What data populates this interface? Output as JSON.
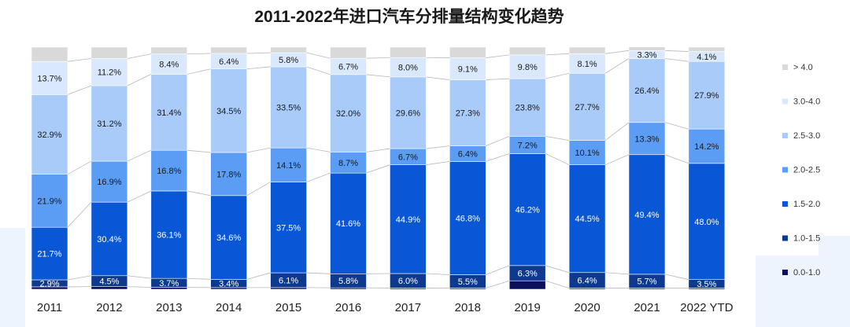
{
  "chart_data": {
    "type": "bar",
    "stacked": true,
    "normalized": true,
    "title": "2011-2022年进口汽车分排量结构变化趋势",
    "xlabel": "",
    "ylabel": "",
    "ylim": [
      0,
      100
    ],
    "grid": false,
    "legend_position": "right",
    "categories": [
      "2011",
      "2012",
      "2013",
      "2014",
      "2015",
      "2016",
      "2017",
      "2018",
      "2019",
      "2020",
      "2021",
      "2022 YTD"
    ],
    "series": [
      {
        "name": "0.0-1.0",
        "color": "#0a0f5c",
        "values": [
          1.0,
          1.1,
          0.8,
          0.7,
          0.7,
          0.6,
          0.5,
          0.5,
          3.5,
          0.5,
          0.5,
          0.5
        ]
      },
      {
        "name": "1.0-1.5",
        "color": "#0d3a8f",
        "labels": [
          "2.9%",
          "4.5%",
          "3.7%",
          "3.4%",
          "6.1%",
          "5.8%",
          "6.0%",
          "5.5%",
          "6.3%",
          "6.4%",
          "5.7%",
          "3.5%"
        ],
        "values": [
          2.9,
          4.5,
          3.7,
          3.4,
          6.1,
          5.8,
          6.0,
          5.5,
          6.3,
          6.4,
          5.7,
          3.5
        ]
      },
      {
        "name": "1.5-2.0",
        "color": "#0a57d6",
        "labels": [
          "21.7%",
          "30.4%",
          "36.1%",
          "34.6%",
          "37.5%",
          "41.6%",
          "44.9%",
          "46.8%",
          "46.2%",
          "44.5%",
          "49.4%",
          "48.0%"
        ],
        "values": [
          21.7,
          30.4,
          36.1,
          34.6,
          37.5,
          41.6,
          44.9,
          46.8,
          46.2,
          44.5,
          49.4,
          48.0
        ]
      },
      {
        "name": "2.0-2.5",
        "color": "#5b9cf5",
        "labels": [
          "21.9%",
          "16.9%",
          "16.8%",
          "17.8%",
          "14.1%",
          "8.7%",
          "6.7%",
          "6.4%",
          "7.2%",
          "10.1%",
          "13.3%",
          "14.2%"
        ],
        "values": [
          21.9,
          16.9,
          16.8,
          17.8,
          14.1,
          8.7,
          6.7,
          6.4,
          7.2,
          10.1,
          13.3,
          14.2
        ]
      },
      {
        "name": "2.5-3.0",
        "color": "#a9cbf9",
        "labels": [
          "32.9%",
          "31.2%",
          "31.4%",
          "34.5%",
          "33.5%",
          "32.0%",
          "29.6%",
          "27.3%",
          "23.8%",
          "27.7%",
          "26.4%",
          "27.9%"
        ],
        "values": [
          32.9,
          31.2,
          31.4,
          34.5,
          33.5,
          32.0,
          29.6,
          27.3,
          23.8,
          27.7,
          26.4,
          27.9
        ]
      },
      {
        "name": "3.0-4.0",
        "color": "#d9e8fc",
        "labels": [
          "13.7%",
          "11.2%",
          "8.4%",
          "6.4%",
          "5.8%",
          "6.7%",
          "8.0%",
          "9.1%",
          "9.8%",
          "8.1%",
          "3.3%",
          "4.1%"
        ],
        "values": [
          13.7,
          11.2,
          8.4,
          6.4,
          5.8,
          6.7,
          8.0,
          9.1,
          9.8,
          8.1,
          3.3,
          4.1
        ]
      },
      {
        "name": "> 4.0",
        "color": "#d9d9d9",
        "values": [
          5.9,
          4.7,
          2.8,
          2.6,
          2.3,
          4.6,
          4.3,
          4.4,
          3.2,
          2.7,
          1.5,
          1.8
        ]
      }
    ]
  }
}
